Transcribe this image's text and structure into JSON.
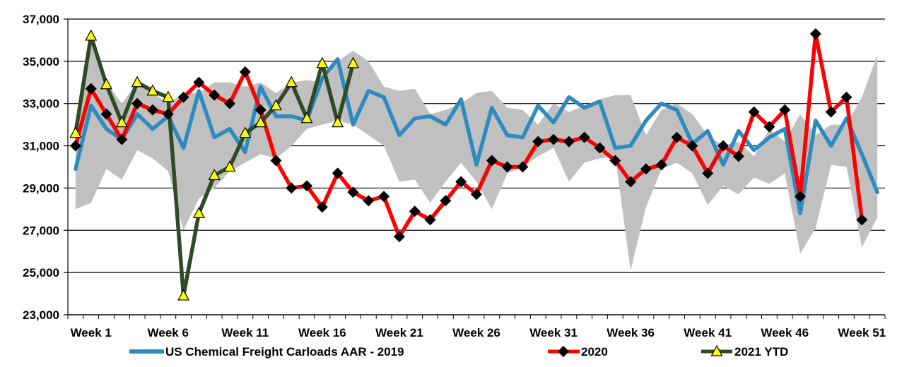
{
  "chart_data": {
    "type": "line",
    "x_tick_labels": [
      "Week 1",
      "Week 6",
      "Week 11",
      "Week 16",
      "Week 21",
      "Week 26",
      "Week 31",
      "Week 36",
      "Week 41",
      "Week 46",
      "Week 51"
    ],
    "x_tick_weeks": [
      1,
      6,
      11,
      16,
      21,
      26,
      31,
      36,
      41,
      46,
      51
    ],
    "weeks": [
      0,
      1,
      2,
      3,
      4,
      5,
      6,
      7,
      8,
      9,
      10,
      11,
      12,
      13,
      14,
      15,
      16,
      17,
      18,
      19,
      20,
      21,
      22,
      23,
      24,
      25,
      26,
      27,
      28,
      29,
      30,
      31,
      32,
      33,
      34,
      35,
      36,
      37,
      38,
      39,
      40,
      41,
      42,
      43,
      44,
      45,
      46,
      47,
      48,
      49,
      50,
      51,
      52
    ],
    "ylim": [
      23000,
      37000
    ],
    "y_ticks": [
      23000,
      25000,
      27000,
      29000,
      31000,
      33000,
      35000,
      37000
    ],
    "y_tick_labels": [
      "23,000",
      "25,000",
      "27,000",
      "29,000",
      "31,000",
      "33,000",
      "35,000",
      "37,000"
    ],
    "grid": "horizontal",
    "legend_position": "bottom",
    "band": {
      "upper": [
        31500,
        36000,
        34000,
        33000,
        34000,
        33500,
        33000,
        33500,
        33500,
        34000,
        34000,
        33800,
        34000,
        33500,
        34000,
        34100,
        34000,
        35000,
        35500,
        35000,
        33800,
        33600,
        33700,
        32500,
        32700,
        33000,
        33500,
        33600,
        32800,
        32700,
        32000,
        33000,
        32600,
        32900,
        33200,
        33400,
        33400,
        31500,
        32700,
        33000,
        32500,
        31500,
        31000,
        31200,
        30500,
        31800,
        31200,
        32500,
        31500,
        32000,
        32000,
        33300,
        35300
      ],
      "lower": [
        28000,
        28300,
        29900,
        29400,
        30800,
        30400,
        29800,
        27000,
        28500,
        29000,
        29800,
        30200,
        30600,
        30400,
        31000,
        31800,
        32000,
        32200,
        32000,
        31500,
        31000,
        29300,
        29400,
        28300,
        29300,
        30200,
        29300,
        28000,
        29700,
        30000,
        30500,
        30900,
        29300,
        30200,
        30400,
        30500,
        25100,
        28100,
        29900,
        30200,
        29700,
        28200,
        29100,
        28700,
        29500,
        29200,
        29700,
        25900,
        27100,
        30100,
        30000,
        26200,
        27600
      ]
    },
    "series": [
      {
        "name": "US Chemical Freight Carloads AAR - 2019",
        "color": "#2E8BC0",
        "marker": "none",
        "values": [
          29900,
          32900,
          31800,
          31300,
          32500,
          31800,
          32400,
          30900,
          33600,
          31400,
          31800,
          30700,
          33800,
          32400,
          32400,
          32200,
          34200,
          35100,
          32000,
          33600,
          33300,
          31500,
          32300,
          32400,
          32000,
          33200,
          30100,
          32800,
          31500,
          31400,
          32900,
          32100,
          33300,
          32800,
          33100,
          30900,
          31000,
          32200,
          33000,
          32700,
          31100,
          31700,
          30100,
          31700,
          30800,
          31400,
          31800,
          27800,
          32200,
          31000,
          32300,
          30600,
          28800
        ]
      },
      {
        "name": "2020",
        "color": "#FF0000",
        "marker": "diamond",
        "values": [
          31000,
          33700,
          32500,
          31300,
          33000,
          32700,
          32500,
          33300,
          34000,
          33400,
          33000,
          34500,
          32700,
          30300,
          29000,
          29100,
          28100,
          29700,
          28800,
          28400,
          28600,
          26700,
          27900,
          27500,
          28400,
          29300,
          28700,
          30300,
          30000,
          30000,
          31200,
          31300,
          31200,
          31400,
          30900,
          30300,
          29300,
          29900,
          30100,
          31400,
          31000,
          29700,
          31000,
          30500,
          32600,
          31900,
          32700,
          28600,
          36300,
          32600,
          33300,
          27500
        ]
      },
      {
        "name": "2021 YTD",
        "color": "#2F4B26",
        "marker": "triangle",
        "values": [
          31600,
          36200,
          33900,
          32100,
          34000,
          33600,
          33300,
          23900,
          27800,
          29600,
          30000,
          31600,
          32100,
          32900,
          34000,
          32300,
          34900,
          32100,
          34900
        ]
      }
    ]
  }
}
